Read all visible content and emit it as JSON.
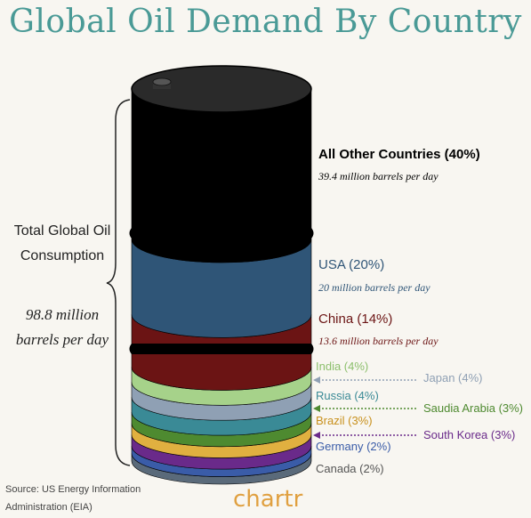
{
  "title": "Global Oil Demand By Country",
  "left_label": {
    "line1": "Total Global Oil",
    "line2": "Consumption",
    "value_line1": "98.8 million",
    "value_line2": "barrels per day"
  },
  "source": {
    "line1": "Source: US Energy Information",
    "line2": "Administration (EIA)"
  },
  "brand": "chartr",
  "chart_data": {
    "type": "stacked-barrel",
    "unit": "million barrels per day",
    "total": 98.8,
    "segments": [
      {
        "name": "All Other Countries",
        "label": "All Other Countries (40%)",
        "percent": 40,
        "detail": "39.4 million barrels per day",
        "value": 39.4,
        "color": "#000000"
      },
      {
        "name": "USA",
        "label": "USA (20%)",
        "percent": 20,
        "detail": "20 million barrels per day",
        "value": 20,
        "color": "#2f5577"
      },
      {
        "name": "China",
        "label": "China (14%)",
        "percent": 14,
        "detail": "13.6 million barrels per day",
        "value": 13.6,
        "color": "#6b1414"
      },
      {
        "name": "India",
        "label": "India (4%)",
        "percent": 4,
        "color": "#a6d28a"
      },
      {
        "name": "Japan",
        "label": "Japan (4%)",
        "percent": 4,
        "color": "#8fa0b4"
      },
      {
        "name": "Russia",
        "label": "Russia (4%)",
        "percent": 4,
        "color": "#3a8a96"
      },
      {
        "name": "Saudia Arabia",
        "label": "Saudia Arabia (3%)",
        "percent": 3,
        "color": "#4e8a30"
      },
      {
        "name": "Brazil",
        "label": "Brazil (3%)",
        "percent": 3,
        "color": "#e0b040"
      },
      {
        "name": "South Korea",
        "label": "South Korea (3%)",
        "percent": 3,
        "color": "#6a2a8a"
      },
      {
        "name": "Germany",
        "label": "Germany (2%)",
        "percent": 2,
        "color": "#3a5ca8"
      },
      {
        "name": "Canada",
        "label": "Canada (2%)",
        "percent": 2,
        "color": "#5a6a7a"
      }
    ]
  }
}
